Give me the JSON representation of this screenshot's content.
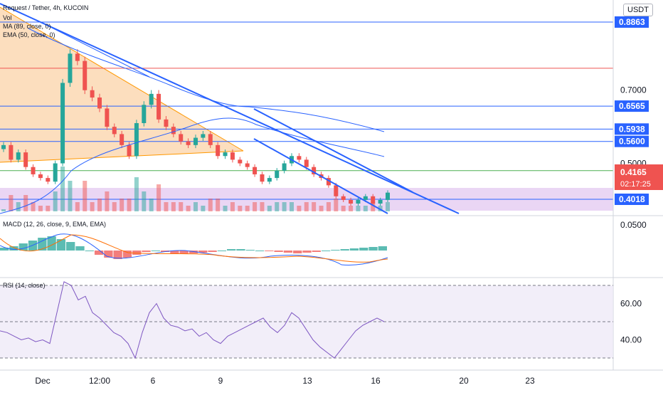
{
  "header": {
    "currency": "USDT",
    "legend_price": "Request / Tether, 4h, KUCOIN",
    "legend_vol": "Vol",
    "legend_ma": "MA (89, close, 0)",
    "legend_ema": "EMA (50, close, 0)",
    "legend_macd": "MACD (12, 26, close, 9, EMA, EMA)",
    "legend_rsi": "RSI (14, close)"
  },
  "colors": {
    "up": "#26a69a",
    "down": "#ef5350",
    "trendline": "#2962ff",
    "ma": "#2962ff",
    "ema": "#2962ff",
    "support_band": "#e1c4f0",
    "triangle": "#fbd3a8",
    "macd_line": "#2962ff",
    "signal_line": "#ff6d00",
    "rsi_line": "#7e57c2",
    "rsi_band": "#ede7f6"
  },
  "chart_data": {
    "type": "candlestick",
    "title": "Request / Tether, 4h, KUCOIN",
    "price_axis": {
      "ticks": [
        "0.7000",
        "0.5000",
        "0.0500"
      ],
      "tick_values": [
        0.7,
        0.5,
        0.05
      ]
    },
    "time_axis": {
      "labels": [
        "Dec",
        "12:00",
        "6",
        "9",
        "13",
        "16",
        "20",
        "23"
      ]
    },
    "horizontal_levels": [
      {
        "label": "0.8863",
        "value": 0.8863,
        "color": "#2962ff"
      },
      {
        "label": "",
        "value": 0.76,
        "color": "#ef5350"
      },
      {
        "label": "0.6565",
        "value": 0.6565,
        "color": "#2962ff"
      },
      {
        "label": "0.5938",
        "value": 0.5938,
        "color": "#2962ff"
      },
      {
        "label": "0.5600",
        "value": 0.56,
        "color": "#2962ff"
      },
      {
        "label": "",
        "value": 0.48,
        "color": "#4caf50"
      },
      {
        "label": "0.4018",
        "value": 0.4018,
        "color": "#2962ff"
      }
    ],
    "current_price": {
      "label": "0.4165",
      "value": 0.4165,
      "countdown": "02:17:25"
    },
    "closes": [
      0.55,
      0.51,
      0.53,
      0.49,
      0.47,
      0.46,
      0.45,
      0.5,
      0.72,
      0.8,
      0.78,
      0.7,
      0.68,
      0.65,
      0.6,
      0.58,
      0.55,
      0.52,
      0.61,
      0.66,
      0.69,
      0.62,
      0.6,
      0.58,
      0.56,
      0.55,
      0.57,
      0.58,
      0.55,
      0.52,
      0.53,
      0.51,
      0.5,
      0.49,
      0.47,
      0.45,
      0.46,
      0.48,
      0.5,
      0.52,
      0.51,
      0.49,
      0.47,
      0.46,
      0.44,
      0.41,
      0.4,
      0.39,
      0.4,
      0.41,
      0.39,
      0.4,
      0.42
    ],
    "macd_panel": {
      "histogram": [
        0.2,
        0.3,
        0.5,
        0.7,
        0.9,
        1.0,
        0.8,
        0.6,
        0.3,
        0.0,
        -0.3,
        -0.5,
        -0.6,
        -0.5,
        -0.3,
        -0.1,
        0.0,
        -0.1,
        -0.2,
        -0.25,
        -0.2,
        -0.15,
        -0.1,
        0.0,
        0.1,
        0.1,
        0.05,
        0.0,
        -0.05,
        -0.1,
        -0.15,
        -0.2,
        -0.15,
        -0.1,
        0.0,
        0.05,
        0.1,
        0.15,
        0.2,
        0.25,
        0.3
      ]
    },
    "rsi_panel": {
      "ticks": [
        "60.00",
        "40.00"
      ],
      "tick_values": [
        60,
        40
      ],
      "upper_band": 70,
      "lower_band": 30,
      "middle": 50,
      "values": [
        45,
        44,
        42,
        40,
        41,
        39,
        40,
        38,
        55,
        72,
        70,
        62,
        64,
        55,
        52,
        48,
        44,
        42,
        38,
        30,
        44,
        55,
        60,
        52,
        48,
        47,
        45,
        46,
        42,
        44,
        40,
        38,
        42,
        44,
        46,
        48,
        50,
        52,
        47,
        44,
        48,
        55,
        52,
        46,
        40,
        36,
        33,
        30,
        35,
        40,
        45,
        48,
        50,
        52,
        50
      ]
    }
  }
}
